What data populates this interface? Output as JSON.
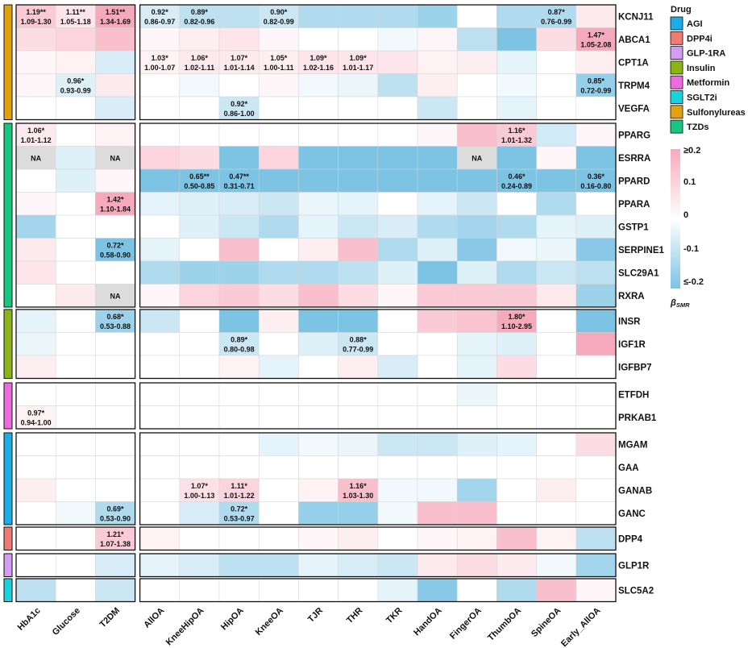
{
  "chart_data": {
    "type": "heatmap",
    "title": "",
    "colorbar": {
      "title": "βSMR",
      "ticks": [
        "≥0.2",
        "0.1",
        "0",
        "-0.1",
        "≤-0.2"
      ],
      "range": [
        -0.2,
        0.2
      ]
    },
    "legend": {
      "title": "Drug"
    },
    "drugs": [
      {
        "name": "AGI",
        "color": "#1AADE6"
      },
      {
        "name": "DPP4i",
        "color": "#F07B72"
      },
      {
        "name": "GLP-1RA",
        "color": "#D39DF2"
      },
      {
        "name": "Insulin",
        "color": "#8BB514"
      },
      {
        "name": "Metformin",
        "color": "#EE6BDE"
      },
      {
        "name": "SGLT2i",
        "color": "#16D3DC"
      },
      {
        "name": "Sulfonylureas",
        "color": "#E2A20C"
      },
      {
        "name": "TZDs",
        "color": "#18C77F"
      }
    ],
    "columns": [
      "HbA1c",
      "Glucose",
      "T2DM",
      "AllOA",
      "KneeHipOA",
      "HipOA",
      "KneeOA",
      "TJR",
      "THR",
      "TKR",
      "HandOA",
      "FingerOA",
      "ThumbOA",
      "SpineOA",
      "Early_AllOA"
    ],
    "row_groups": [
      {
        "drug": "Sulfonylureas",
        "genes": [
          "KCNJ11",
          "ABCA1",
          "CPT1A",
          "TRPM4",
          "VEGFA"
        ]
      },
      {
        "drug": "TZDs",
        "genes": [
          "PPARG",
          "ESRRA",
          "PPARD",
          "PPARA",
          "GSTP1",
          "SERPINE1",
          "SLC29A1",
          "RXRA"
        ]
      },
      {
        "drug": "Insulin",
        "genes": [
          "INSR",
          "IGF1R",
          "IGFBP7"
        ]
      },
      {
        "drug": "Metformin",
        "genes": [
          "ETFDH",
          "PRKAB1"
        ]
      },
      {
        "drug": "AGI",
        "genes": [
          "MGAM",
          "GAA",
          "GANAB",
          "GANC"
        ]
      },
      {
        "drug": "DPP4i",
        "genes": [
          "DPP4"
        ]
      },
      {
        "drug": "GLP-1RA",
        "genes": [
          "GLP1R"
        ]
      },
      {
        "drug": "SGLT2i",
        "genes": [
          "SLC5A2"
        ]
      }
    ],
    "values": [
      [
        0.12,
        0.06,
        0.2,
        -0.06,
        -0.1,
        -0.1,
        -0.08,
        -0.12,
        -0.12,
        -0.12,
        -0.15,
        0.0,
        -0.12,
        -0.12,
        0.05
      ],
      [
        0.08,
        0.1,
        0.15,
        0.02,
        0.04,
        0.06,
        0.02,
        0.0,
        0.0,
        -0.02,
        0.02,
        -0.1,
        -0.2,
        0.08,
        0.2
      ],
      [
        0.02,
        0.03,
        -0.06,
        0.03,
        0.05,
        0.05,
        0.04,
        0.06,
        0.06,
        0.06,
        0.03,
        0.04,
        -0.04,
        0.0,
        0.04
      ],
      [
        0.02,
        -0.05,
        0.05,
        0.0,
        -0.02,
        0.0,
        0.02,
        -0.02,
        -0.03,
        -0.1,
        0.04,
        0.0,
        -0.02,
        0.0,
        -0.16
      ],
      [
        0.0,
        0.0,
        -0.06,
        0.0,
        0.0,
        -0.08,
        0.0,
        0.0,
        0.0,
        0.0,
        -0.08,
        0.0,
        -0.04,
        0.0,
        0.0
      ],
      [
        0.05,
        0.0,
        0.03,
        0.0,
        0.0,
        0.0,
        0.0,
        0.0,
        0.0,
        0.0,
        0.02,
        0.15,
        0.12,
        -0.07,
        0.02
      ],
      [
        null,
        -0.05,
        null,
        0.1,
        0.08,
        -0.2,
        0.1,
        -0.2,
        -0.2,
        -0.2,
        -0.2,
        null,
        -0.2,
        0.02,
        -0.2
      ],
      [
        0.0,
        -0.05,
        0.02,
        -0.2,
        -0.2,
        -0.2,
        -0.2,
        -0.2,
        -0.2,
        -0.2,
        -0.2,
        -0.2,
        -0.2,
        -0.2,
        -0.2
      ],
      [
        0.02,
        0.0,
        0.2,
        -0.04,
        -0.05,
        -0.06,
        -0.08,
        -0.03,
        -0.04,
        0.0,
        -0.04,
        -0.08,
        0.0,
        -0.12,
        0.0
      ],
      [
        -0.14,
        0.0,
        0.0,
        0.0,
        -0.05,
        -0.08,
        -0.12,
        -0.04,
        -0.08,
        -0.06,
        -0.12,
        -0.14,
        -0.12,
        -0.04,
        -0.05
      ],
      [
        0.05,
        0.0,
        -0.2,
        -0.04,
        0.0,
        0.15,
        0.0,
        0.04,
        0.15,
        -0.12,
        -0.05,
        -0.18,
        -0.02,
        -0.03,
        -0.18
      ],
      [
        0.06,
        0.0,
        0.0,
        -0.12,
        -0.15,
        -0.15,
        -0.12,
        -0.12,
        -0.1,
        -0.05,
        -0.2,
        -0.05,
        -0.12,
        -0.08,
        -0.1
      ],
      [
        0.0,
        0.05,
        null,
        0.02,
        0.1,
        0.12,
        0.08,
        0.15,
        0.08,
        0.02,
        0.12,
        0.12,
        0.12,
        0.05,
        -0.15
      ],
      [
        -0.04,
        0.0,
        -0.15,
        -0.08,
        0.0,
        -0.2,
        0.04,
        -0.2,
        -0.2,
        0.0,
        0.12,
        0.14,
        0.2,
        0.0,
        -0.2
      ],
      [
        -0.03,
        0.0,
        0.0,
        0.0,
        0.0,
        -0.08,
        0.0,
        -0.05,
        -0.08,
        0.0,
        0.0,
        -0.04,
        -0.05,
        0.0,
        0.2
      ],
      [
        0.04,
        0.0,
        0.0,
        0.0,
        0.0,
        0.03,
        -0.04,
        0.0,
        0.04,
        -0.06,
        0.0,
        -0.04,
        0.08,
        0.0,
        0.0
      ],
      [
        0.0,
        0.0,
        0.0,
        0.0,
        0.0,
        0.0,
        0.0,
        0.0,
        0.0,
        0.0,
        0.0,
        -0.03,
        0.0,
        0.0,
        0.0
      ],
      [
        0.03,
        0.0,
        0.0,
        0.0,
        0.0,
        0.0,
        0.0,
        0.0,
        0.0,
        0.0,
        0.0,
        0.0,
        0.0,
        0.0,
        0.0
      ],
      [
        0.0,
        0.0,
        0.0,
        0.0,
        0.0,
        0.0,
        -0.04,
        -0.02,
        -0.03,
        -0.08,
        -0.08,
        -0.05,
        -0.04,
        0.0,
        0.08
      ],
      [
        0.0,
        0.0,
        0.0,
        0.0,
        0.0,
        0.0,
        0.0,
        0.0,
        0.0,
        0.0,
        0.0,
        0.0,
        0.0,
        0.0,
        0.0
      ],
      [
        0.04,
        0.0,
        0.0,
        0.0,
        0.07,
        0.1,
        0.0,
        0.03,
        0.15,
        -0.02,
        -0.02,
        -0.14,
        0.0,
        0.04,
        0.0
      ],
      [
        0.0,
        -0.02,
        -0.12,
        0.0,
        -0.06,
        -0.12,
        0.0,
        -0.16,
        -0.16,
        -0.02,
        0.15,
        0.15,
        0.0,
        0.0,
        0.0
      ],
      [
        0.0,
        0.0,
        0.12,
        0.03,
        0.0,
        0.0,
        0.0,
        0.02,
        0.04,
        0.0,
        0.02,
        0.03,
        0.15,
        0.03,
        -0.1
      ],
      [
        0.0,
        0.0,
        -0.06,
        -0.04,
        -0.06,
        -0.1,
        -0.1,
        -0.04,
        -0.06,
        -0.08,
        0.05,
        0.08,
        0.05,
        -0.02,
        -0.14
      ],
      [
        -0.1,
        0.0,
        -0.08,
        0.0,
        0.0,
        0.0,
        0.0,
        0.0,
        0.0,
        -0.04,
        -0.18,
        0.0,
        -0.12,
        0.15,
        0.02
      ]
    ],
    "na_text": "NA",
    "annotations": [
      {
        "gene": "KCNJ11",
        "col": "HbA1c",
        "or": "1.19**",
        "ci": "1.09-1.30"
      },
      {
        "gene": "KCNJ11",
        "col": "Glucose",
        "or": "1.11**",
        "ci": "1.05-1.18"
      },
      {
        "gene": "KCNJ11",
        "col": "T2DM",
        "or": "1.51**",
        "ci": "1.34-1.69"
      },
      {
        "gene": "KCNJ11",
        "col": "AllOA",
        "or": "0.92*",
        "ci": "0.86-0.97"
      },
      {
        "gene": "KCNJ11",
        "col": "KneeHipOA",
        "or": "0.89*",
        "ci": "0.82-0.96"
      },
      {
        "gene": "KCNJ11",
        "col": "KneeOA",
        "or": "0.90*",
        "ci": "0.82-0.99"
      },
      {
        "gene": "KCNJ11",
        "col": "SpineOA",
        "or": "0.87*",
        "ci": "0.76-0.99"
      },
      {
        "gene": "ABCA1",
        "col": "Early_AllOA",
        "or": "1.47*",
        "ci": "1.05-2.08"
      },
      {
        "gene": "CPT1A",
        "col": "AllOA",
        "or": "1.03*",
        "ci": "1.00-1.07"
      },
      {
        "gene": "CPT1A",
        "col": "KneeHipOA",
        "or": "1.06*",
        "ci": "1.02-1.11"
      },
      {
        "gene": "CPT1A",
        "col": "HipOA",
        "or": "1.07*",
        "ci": "1.01-1.14"
      },
      {
        "gene": "CPT1A",
        "col": "KneeOA",
        "or": "1.05*",
        "ci": "1.00-1.11"
      },
      {
        "gene": "CPT1A",
        "col": "TJR",
        "or": "1.09*",
        "ci": "1.02-1.16"
      },
      {
        "gene": "CPT1A",
        "col": "THR",
        "or": "1.09*",
        "ci": "1.01-1.17"
      },
      {
        "gene": "TRPM4",
        "col": "Glucose",
        "or": "0.96*",
        "ci": "0.93-0.99"
      },
      {
        "gene": "TRPM4",
        "col": "Early_AllOA",
        "or": "0.85*",
        "ci": "0.72-0.99"
      },
      {
        "gene": "VEGFA",
        "col": "HipOA",
        "or": "0.92*",
        "ci": "0.86-1.00"
      },
      {
        "gene": "PPARG",
        "col": "HbA1c",
        "or": "1.06*",
        "ci": "1.01-1.12"
      },
      {
        "gene": "PPARG",
        "col": "ThumbOA",
        "or": "1.16*",
        "ci": "1.01-1.32"
      },
      {
        "gene": "PPARD",
        "col": "KneeHipOA",
        "or": "0.65**",
        "ci": "0.50-0.85"
      },
      {
        "gene": "PPARD",
        "col": "HipOA",
        "or": "0.47**",
        "ci": "0.31-0.71"
      },
      {
        "gene": "PPARD",
        "col": "ThumbOA",
        "or": "0.46*",
        "ci": "0.24-0.89"
      },
      {
        "gene": "PPARD",
        "col": "Early_AllOA",
        "or": "0.36*",
        "ci": "0.16-0.80"
      },
      {
        "gene": "PPARA",
        "col": "T2DM",
        "or": "1.42*",
        "ci": "1.10-1.84"
      },
      {
        "gene": "SERPINE1",
        "col": "T2DM",
        "or": "0.72*",
        "ci": "0.58-0.90"
      },
      {
        "gene": "INSR",
        "col": "T2DM",
        "or": "0.68*",
        "ci": "0.53-0.88"
      },
      {
        "gene": "INSR",
        "col": "ThumbOA",
        "or": "1.80*",
        "ci": "1.10-2.95"
      },
      {
        "gene": "IGF1R",
        "col": "HipOA",
        "or": "0.89*",
        "ci": "0.80-0.98"
      },
      {
        "gene": "IGF1R",
        "col": "THR",
        "or": "0.88*",
        "ci": "0.77-0.99"
      },
      {
        "gene": "PRKAB1",
        "col": "HbA1c",
        "or": "0.97*",
        "ci": "0.94-1.00"
      },
      {
        "gene": "GANAB",
        "col": "KneeHipOA",
        "or": "1.07*",
        "ci": "1.00-1.13"
      },
      {
        "gene": "GANAB",
        "col": "HipOA",
        "or": "1.11*",
        "ci": "1.01-1.22"
      },
      {
        "gene": "GANAB",
        "col": "THR",
        "or": "1.16*",
        "ci": "1.03-1.30"
      },
      {
        "gene": "GANC",
        "col": "T2DM",
        "or": "0.69*",
        "ci": "0.53-0.90"
      },
      {
        "gene": "GANC",
        "col": "HipOA",
        "or": "0.72*",
        "ci": "0.53-0.97"
      },
      {
        "gene": "DPP4",
        "col": "T2DM",
        "or": "1.21*",
        "ci": "1.07-1.38"
      }
    ]
  }
}
